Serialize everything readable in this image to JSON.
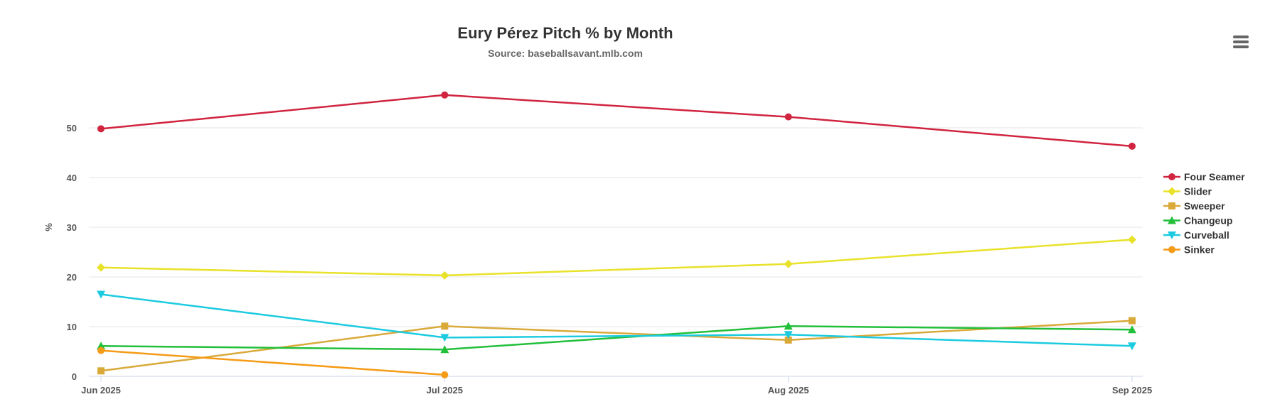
{
  "chart": {
    "title": "Eury Pérez Pitch % by Month",
    "subtitle": "Source: baseballsavant.mlb.com",
    "ylabel": "%"
  },
  "menu": {
    "icon": "hamburger-menu-icon"
  },
  "chart_data": {
    "type": "line",
    "title": "Eury Pérez Pitch % by Month",
    "subtitle": "Source: baseballsavant.mlb.com",
    "xlabel": "",
    "ylabel": "%",
    "categories": [
      "Jun 2025",
      "Jul 2025",
      "Aug 2025",
      "Sep 2025"
    ],
    "ylim": [
      0,
      50
    ],
    "yticks": [
      0,
      10,
      20,
      30,
      40,
      50
    ],
    "grid": true,
    "legend": "right",
    "series": [
      {
        "name": "Four Seamer",
        "color": "#d0243f",
        "marker": "circle",
        "values": [
          49.8,
          56.6,
          52.2,
          46.3
        ]
      },
      {
        "name": "Slider",
        "color": "#e8e22a",
        "marker": "diamond",
        "values": [
          21.9,
          20.3,
          22.6,
          27.5
        ]
      },
      {
        "name": "Sweeper",
        "color": "#d9aa3a",
        "marker": "square",
        "values": [
          1.1,
          10.1,
          7.3,
          11.2
        ]
      },
      {
        "name": "Changeup",
        "color": "#22bf3a",
        "marker": "triangle",
        "values": [
          6.1,
          5.4,
          10.1,
          9.4
        ]
      },
      {
        "name": "Curveball",
        "color": "#1ccbe0",
        "marker": "triangle-down",
        "values": [
          16.5,
          7.8,
          8.4,
          6.1
        ]
      },
      {
        "name": "Sinker",
        "color": "#f59b17",
        "marker": "circle",
        "values": [
          5.2,
          0.3,
          null,
          null
        ]
      }
    ]
  }
}
